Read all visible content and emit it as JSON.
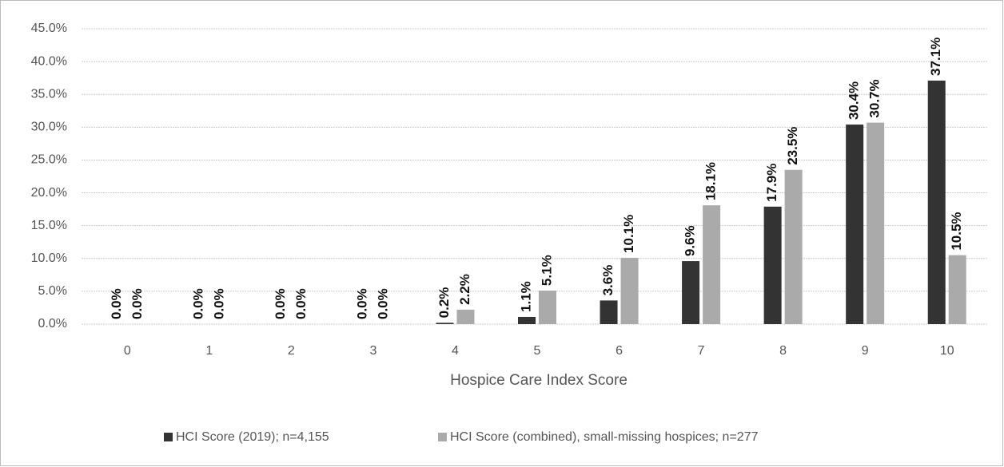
{
  "chart_data": {
    "type": "bar",
    "x_label": "Hospice Care Index Score",
    "categories": [
      "0",
      "1",
      "2",
      "3",
      "4",
      "5",
      "6",
      "7",
      "8",
      "9",
      "10"
    ],
    "series": [
      {
        "name": "HCI Score (2019); n=4,155",
        "color": "#333333",
        "values": [
          0,
          0,
          0,
          0,
          0.2,
          1.1,
          3.6,
          9.6,
          17.9,
          30.4,
          37.1
        ],
        "value_labels": [
          "0.0%",
          "0.0%",
          "0.0%",
          "0.0%",
          "0.2%",
          "1.1%",
          "3.6%",
          "9.6%",
          "17.9%",
          "30.4%",
          "37.1%"
        ]
      },
      {
        "name": "HCI Score (combined), small-missing hospices; n=277",
        "color": "#aaaaaa",
        "values": [
          0,
          0,
          0,
          0,
          2.2,
          5.1,
          10.1,
          18.1,
          23.5,
          30.7,
          10.5
        ],
        "value_labels": [
          "0.0%",
          "0.0%",
          "0.0%",
          "0.0%",
          "2.2%",
          "5.1%",
          "10.1%",
          "18.1%",
          "23.5%",
          "30.7%",
          "10.5%"
        ]
      }
    ],
    "ylim": [
      0,
      45
    ],
    "yticks": [
      {
        "value": 0,
        "label": "0.0%"
      },
      {
        "value": 5,
        "label": "5.0%"
      },
      {
        "value": 10,
        "label": "10.0%"
      },
      {
        "value": 15,
        "label": "15.0%"
      },
      {
        "value": 20,
        "label": "20.0%"
      },
      {
        "value": 25,
        "label": "25.0%"
      },
      {
        "value": 30,
        "label": "30.0%"
      },
      {
        "value": 35,
        "label": "35.0%"
      },
      {
        "value": 40,
        "label": "40.0%"
      },
      {
        "value": 45,
        "label": "45.0%"
      }
    ],
    "grid": true,
    "legend": "bottom"
  }
}
